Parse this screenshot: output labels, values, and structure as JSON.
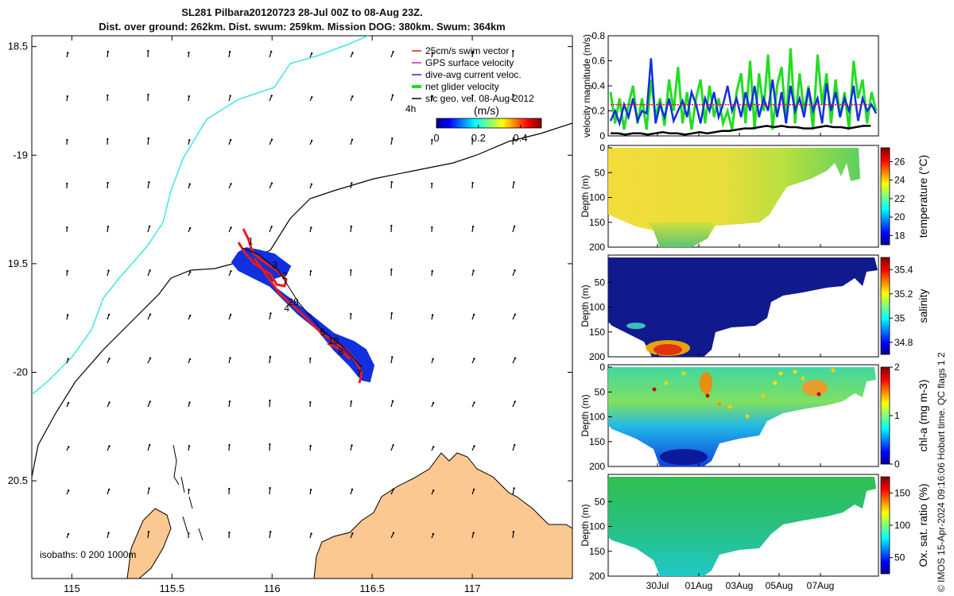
{
  "header": {
    "title": "SL281 Pilbara20120723 28-Jul 00Z to 08-Aug 23Z.",
    "subtitle": "Dist. over ground: 262km. Dist. swum: 259km. Mission DOG: 380km. Swum: 364km"
  },
  "credit": "© IMOS 15-Apr-2024 09:16:06 Hobart time. QC flags 1  2",
  "map": {
    "lon_ticks": [
      "115",
      "115.5",
      "116",
      "116.5",
      "117"
    ],
    "lat_ticks": [
      "18.5",
      "-19",
      "19.5",
      "-20",
      "20.5"
    ],
    "xlim": [
      114.8,
      117.5
    ],
    "ylim": [
      -20.95,
      -18.45
    ],
    "legend": [
      {
        "label": "25cm/s swim vector",
        "color": "#e41a1c"
      },
      {
        "label": "GPS surface velocity",
        "color": "#d020d0"
      },
      {
        "label": "dive-avg current veloc.",
        "color": "#1030e0"
      },
      {
        "label": "net glider velocity",
        "color": "#22dd22"
      },
      {
        "label": "sfc geo. vel. 08-Aug-2012",
        "color": "#000000"
      }
    ],
    "legend_note": "4h",
    "colorbar": {
      "label": "(m/s)",
      "ticks": [
        "0",
        "0.2",
        "0.4"
      ],
      "range": [
        0,
        0.5
      ]
    },
    "isobath_note": "isobaths: 0   200  1000m",
    "waypoints": [
      {
        "label": "1",
        "lon": 115.88,
        "lat": -19.41
      },
      {
        "label": "3",
        "lon": 116.0,
        "lat": -19.52
      },
      {
        "label": "2",
        "lon": 116.05,
        "lat": -19.57
      },
      {
        "label": "28",
        "lon": 116.08,
        "lat": -19.69
      },
      {
        "label": "4",
        "lon": 116.06,
        "lat": -19.72
      },
      {
        "label": "5",
        "lon": 116.24,
        "lat": -19.83
      },
      {
        "label": "10",
        "lon": 116.28,
        "lat": -19.87
      },
      {
        "label": "8",
        "lon": 116.33,
        "lat": -19.92
      },
      {
        "label": "7",
        "lon": 116.42,
        "lat": -20.02
      }
    ]
  },
  "chart_data": [
    {
      "type": "line",
      "ylabel": "velocity magnitude (m/s)",
      "ylim": [
        0,
        0.8
      ],
      "yticks": [
        "0",
        "0.2",
        "0.4",
        "0.6",
        "0.8"
      ],
      "series": [
        {
          "name": "net glider velocity",
          "color": "#22dd22",
          "values": [
            0.35,
            0.1,
            0.3,
            0.05,
            0.25,
            0.4,
            0.1,
            0.3,
            0.05,
            0.45,
            0.15,
            0.3,
            0.08,
            0.45,
            0.2,
            0.55,
            0.1,
            0.35,
            0.05,
            0.3,
            0.45,
            0.1,
            0.4,
            0.15,
            0.3,
            0.1,
            0.2,
            0.05,
            0.35,
            0.5,
            0.1,
            0.6,
            0.05,
            0.5,
            0.2,
            0.65,
            0.05,
            0.4,
            0.55,
            0.1,
            0.7,
            0.1,
            0.5,
            0.2,
            0.4,
            0.05,
            0.65,
            0.25,
            0.5,
            0.1,
            0.45,
            0.15,
            0.35,
            0.05,
            0.6,
            0.3,
            0.45,
            0.1,
            0.35,
            0.2
          ]
        },
        {
          "name": "dive-avg current veloc.",
          "color": "#1030e0",
          "values": [
            0.12,
            0.2,
            0.1,
            0.25,
            0.15,
            0.3,
            0.12,
            0.2,
            0.18,
            0.62,
            0.1,
            0.25,
            0.15,
            0.3,
            0.12,
            0.2,
            0.28,
            0.15,
            0.35,
            0.25,
            0.1,
            0.3,
            0.2,
            0.35,
            0.15,
            0.25,
            0.4,
            0.2,
            0.3,
            0.15,
            0.35,
            0.2,
            0.4,
            0.15,
            0.3,
            0.2,
            0.45,
            0.15,
            0.35,
            0.1,
            0.4,
            0.2,
            0.3,
            0.15,
            0.38,
            0.2,
            0.3,
            0.1,
            0.42,
            0.2,
            0.35,
            0.15,
            0.3,
            0.2,
            0.4,
            0.12,
            0.3,
            0.2,
            0.25,
            0.18
          ]
        },
        {
          "name": "25cm/s swim vector",
          "color": "#e41a1c",
          "values": [
            0.25,
            0.25,
            0.25,
            0.25,
            0.25,
            0.25,
            0.25,
            0.25,
            0.25,
            0.25,
            0.25,
            0.25,
            0.25,
            0.25,
            0.25,
            0.25,
            0.25,
            0.25,
            0.25,
            0.25,
            0.25,
            0.25,
            0.25,
            0.25,
            0.25,
            0.25,
            0.25,
            0.25,
            0.25,
            0.25,
            0.25,
            0.25,
            0.25,
            0.25,
            0.25,
            0.25
          ]
        },
        {
          "name": "sfc geo. vel.",
          "color": "#000000",
          "values": [
            0.02,
            0.02,
            0.01,
            0.02,
            0.02,
            0.01,
            0.02,
            0.03,
            0.02,
            0.02,
            0.01,
            0.02,
            0.03,
            0.02,
            0.03,
            0.04,
            0.04,
            0.05,
            0.06,
            0.06,
            0.07,
            0.08,
            0.07,
            0.08,
            0.07,
            0.07,
            0.06,
            0.06,
            0.07,
            0.08,
            0.07,
            0.07,
            0.06,
            0.07,
            0.08,
            0.08
          ]
        }
      ]
    },
    {
      "type": "heatmap",
      "ylabel": "Depth (m)",
      "clabel": "temperature (°C)",
      "cticks": [
        "18",
        "20",
        "22",
        "24",
        "26"
      ],
      "clim": [
        17,
        27.5
      ],
      "ylim": [
        200,
        0
      ],
      "yticks": [
        "0",
        "50",
        "100",
        "150",
        "200"
      ]
    },
    {
      "type": "heatmap",
      "ylabel": "Depth (m)",
      "clabel": "salinity",
      "cticks": [
        "34.8",
        "35",
        "35.2",
        "35.4"
      ],
      "clim": [
        34.7,
        35.5
      ],
      "ylim": [
        200,
        0
      ],
      "yticks": [
        "50",
        "100",
        "150",
        "200"
      ]
    },
    {
      "type": "heatmap",
      "ylabel": "Depth (m)",
      "clabel": "chl-a (mg m-3)",
      "cticks": [
        "0",
        "1",
        "2"
      ],
      "clim": [
        0,
        2
      ],
      "ylim": [
        200,
        0
      ],
      "yticks": [
        "0",
        "50",
        "100",
        "150",
        "200"
      ]
    },
    {
      "type": "heatmap",
      "ylabel": "Depth (m)",
      "clabel": "Ox. sat. ratio (%)",
      "cticks": [
        "50",
        "100",
        "150"
      ],
      "clim": [
        25,
        175
      ],
      "ylim": [
        200,
        0
      ],
      "yticks": [
        "50",
        "100",
        "150",
        "200"
      ],
      "xticks": [
        "30Jul",
        "01Aug",
        "03Aug",
        "05Aug",
        "07Aug"
      ]
    }
  ]
}
